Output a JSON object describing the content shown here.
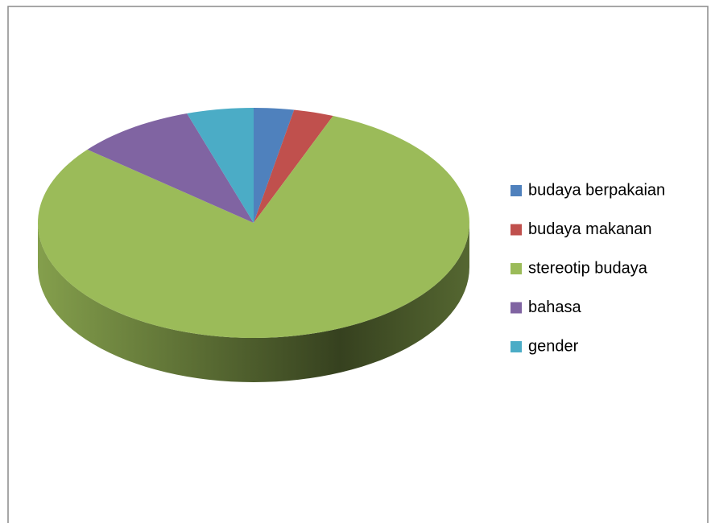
{
  "chart_data": {
    "type": "pie3d",
    "categories": [
      "budaya berpakaian",
      "budaya makanan",
      "stereotip budaya",
      "bahasa",
      "gender"
    ],
    "values": [
      3,
      3,
      80,
      9,
      5
    ],
    "colors": [
      "#4f81bd",
      "#c0504d",
      "#9bbb59",
      "#8064a2",
      "#4bacc6"
    ],
    "legend": "right"
  }
}
